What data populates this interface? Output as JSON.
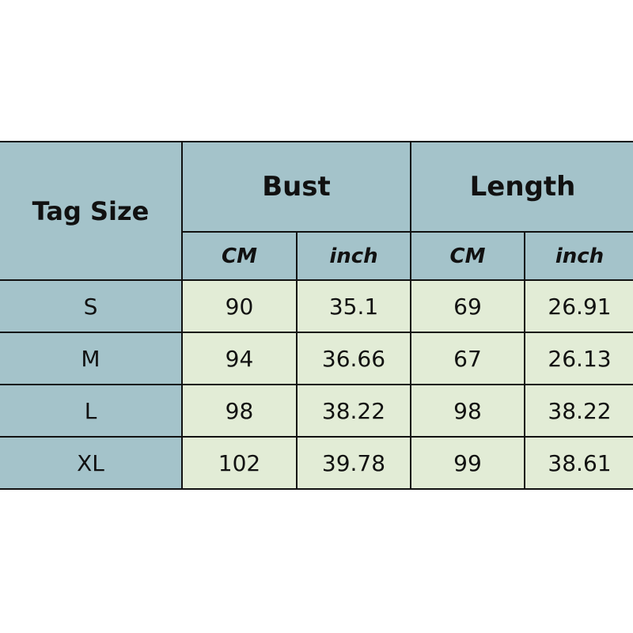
{
  "table": {
    "tag_size_label": "Tag Size",
    "groups": [
      "Bust",
      "Length"
    ],
    "units": [
      "CM",
      "inch",
      "CM",
      "inch"
    ],
    "rows": [
      {
        "size": "S",
        "values": [
          "90",
          "35.1",
          "69",
          "26.91"
        ]
      },
      {
        "size": "M",
        "values": [
          "94",
          "36.66",
          "67",
          "26.13"
        ]
      },
      {
        "size": "L",
        "values": [
          "98",
          "38.22",
          "98",
          "38.22"
        ]
      },
      {
        "size": "XL",
        "values": [
          "102",
          "39.78",
          "99",
          "38.61"
        ]
      }
    ]
  },
  "colors": {
    "header_bg": "#a4c3ca",
    "cell_bg": "#e2ecd6",
    "border": "#111111"
  }
}
